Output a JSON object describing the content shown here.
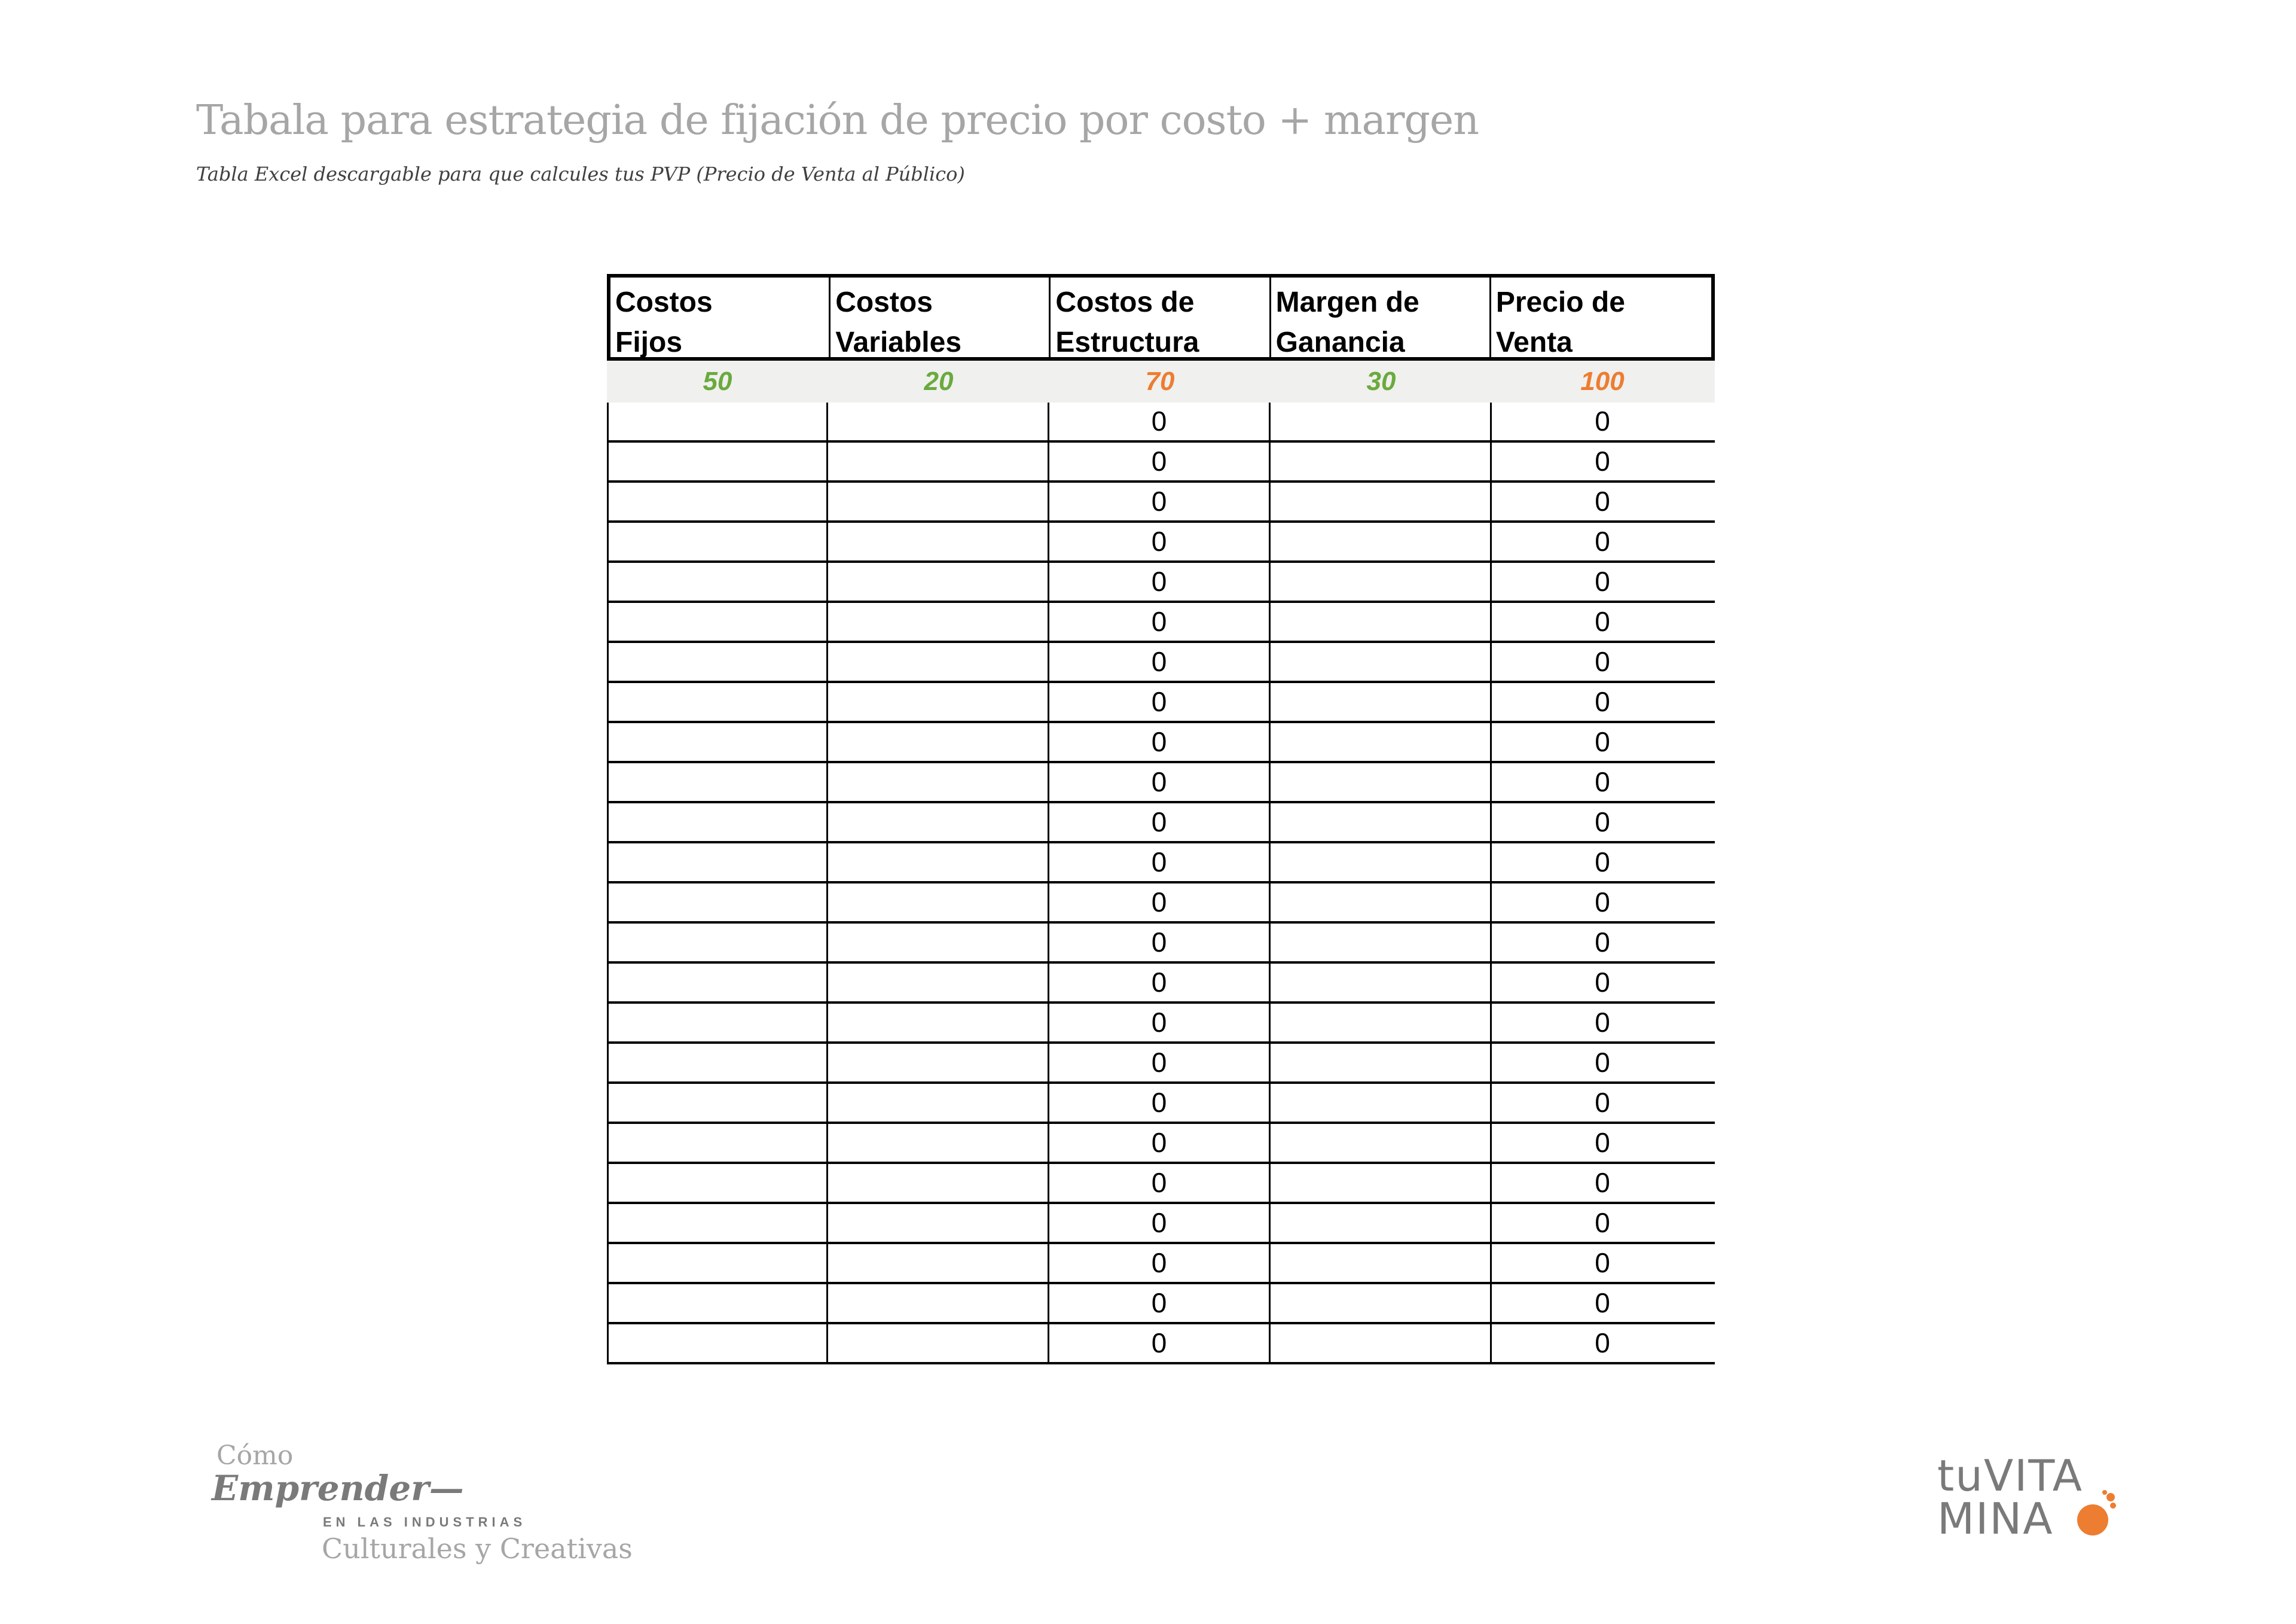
{
  "document": {
    "title": "Tabala para estrategia de fijación de precio por costo + margen",
    "subtitle": "Tabla Excel descargable para que calcules tus PVP (Precio de Venta al Público)"
  },
  "table": {
    "headers": [
      "Costos\nFijos",
      "Costos\nVariables",
      "Costos de\nEstructura",
      "Margen de\nGanancia",
      "Precio de\nVenta"
    ],
    "example_row": [
      "50",
      "20",
      "70",
      "30",
      "100"
    ],
    "example_colors": [
      "#6aaa3e",
      "#6aaa3e",
      "#ed7d31",
      "#6aaa3e",
      "#ed7d31"
    ],
    "empty_rows": [
      [
        "",
        "",
        "0",
        "",
        "0"
      ],
      [
        "",
        "",
        "0",
        "",
        "0"
      ],
      [
        "",
        "",
        "0",
        "",
        "0"
      ],
      [
        "",
        "",
        "0",
        "",
        "0"
      ],
      [
        "",
        "",
        "0",
        "",
        "0"
      ],
      [
        "",
        "",
        "0",
        "",
        "0"
      ],
      [
        "",
        "",
        "0",
        "",
        "0"
      ],
      [
        "",
        "",
        "0",
        "",
        "0"
      ],
      [
        "",
        "",
        "0",
        "",
        "0"
      ],
      [
        "",
        "",
        "0",
        "",
        "0"
      ],
      [
        "",
        "",
        "0",
        "",
        "0"
      ],
      [
        "",
        "",
        "0",
        "",
        "0"
      ],
      [
        "",
        "",
        "0",
        "",
        "0"
      ],
      [
        "",
        "",
        "0",
        "",
        "0"
      ],
      [
        "",
        "",
        "0",
        "",
        "0"
      ],
      [
        "",
        "",
        "0",
        "",
        "0"
      ],
      [
        "",
        "",
        "0",
        "",
        "0"
      ],
      [
        "",
        "",
        "0",
        "",
        "0"
      ],
      [
        "",
        "",
        "0",
        "",
        "0"
      ],
      [
        "",
        "",
        "0",
        "",
        "0"
      ],
      [
        "",
        "",
        "0",
        "",
        "0"
      ],
      [
        "",
        "",
        "0",
        "",
        "0"
      ],
      [
        "",
        "",
        "0",
        "",
        "0"
      ],
      [
        "",
        "",
        "0",
        "",
        "0"
      ]
    ]
  },
  "branding": {
    "left_logo": {
      "como": "Cómo",
      "emprender": "Emprender—",
      "industrias": "EN LAS INDUSTRIAS",
      "culturales": "Culturales y Creativas"
    },
    "right_logo": {
      "line1": "tuVITA",
      "line2": "MINA",
      "accent_color": "#ed7d31",
      "text_color": "#7a7a7a"
    }
  }
}
